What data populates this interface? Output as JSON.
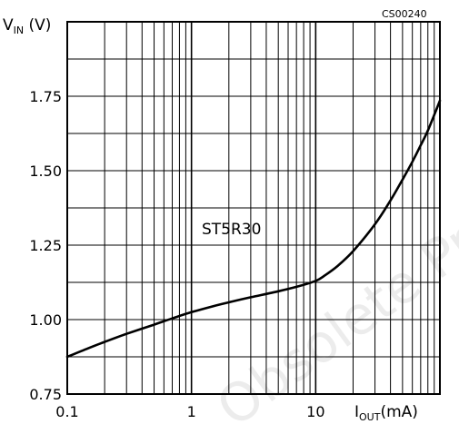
{
  "chart_data": {
    "type": "line",
    "figure_code": "CS00240",
    "annotation": "ST5R30",
    "watermark": "Obsolete Product(s)",
    "ylabel": {
      "main": "V",
      "sub": "IN",
      "unit": " (V)"
    },
    "xlabel": {
      "main": "I",
      "sub": "OUT",
      "unit": "(mA)"
    },
    "x_scale": "log",
    "xlim": [
      0.1,
      100
    ],
    "ylim": [
      0.75,
      2.0
    ],
    "grid": true,
    "x_ticks": [
      {
        "value": 0.1,
        "label": "0.1"
      },
      {
        "value": 1,
        "label": "1"
      },
      {
        "value": 10,
        "label": "10"
      }
    ],
    "y_ticks": [
      {
        "value": 0.75,
        "label": "0.75"
      },
      {
        "value": 1.0,
        "label": "1.00"
      },
      {
        "value": 1.25,
        "label": "1.25"
      },
      {
        "value": 1.5,
        "label": "1.50"
      },
      {
        "value": 1.75,
        "label": "1.75"
      }
    ],
    "series": [
      {
        "x": [
          0.1,
          0.15,
          0.2,
          0.3,
          0.5,
          0.7,
          1,
          1.5,
          2,
          3,
          5,
          7,
          10,
          12,
          15,
          20,
          30,
          40,
          50,
          60,
          70,
          80,
          100
        ],
        "y": [
          0.875,
          0.905,
          0.925,
          0.952,
          0.983,
          1.004,
          1.025,
          1.045,
          1.058,
          1.075,
          1.095,
          1.11,
          1.13,
          1.15,
          1.18,
          1.23,
          1.32,
          1.4,
          1.47,
          1.53,
          1.585,
          1.635,
          1.735
        ]
      }
    ]
  }
}
